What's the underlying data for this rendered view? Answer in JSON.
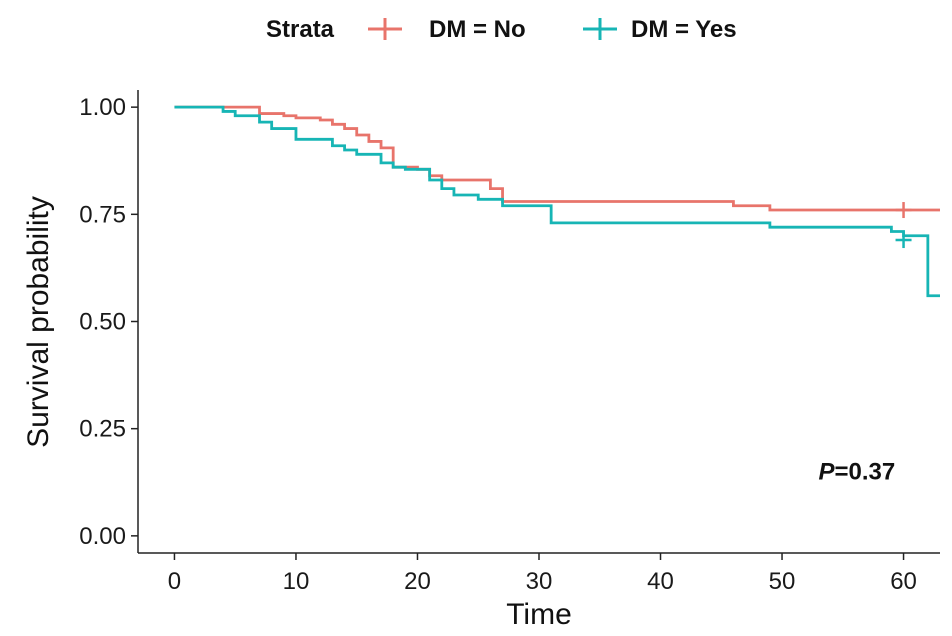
{
  "chart_data": {
    "type": "line",
    "subtype": "kaplan-meier step curve",
    "title": "",
    "xlabel": "Time",
    "ylabel": "Survival probability",
    "xlim": [
      -3,
      63
    ],
    "ylim": [
      -0.04,
      1.04
    ],
    "x_ticks": [
      0,
      10,
      20,
      30,
      40,
      50,
      60
    ],
    "x_tick_labels": [
      "0",
      "10",
      "20",
      "30",
      "40",
      "50",
      "60"
    ],
    "y_ticks": [
      0,
      0.25,
      0.5,
      0.75,
      1
    ],
    "y_tick_labels": [
      "0.00",
      "0.25",
      "0.50",
      "0.75",
      "1.00"
    ],
    "grid": false,
    "legend": {
      "title": "Strata",
      "position": "top",
      "labels": [
        "DM = No",
        "DM = Yes"
      ]
    },
    "annotation": {
      "p_label": "P",
      "p_value_text": "=0.37",
      "x": 53,
      "y": 0.15
    },
    "series": [
      {
        "name": "DM = No",
        "color": "#e8746b",
        "x": [
          0,
          4,
          7,
          9,
          10,
          12,
          13,
          14,
          15,
          16,
          17,
          18,
          20,
          21,
          22,
          26,
          27,
          30,
          46,
          49,
          63
        ],
        "y": [
          1.0,
          1.0,
          0.985,
          0.98,
          0.975,
          0.97,
          0.96,
          0.95,
          0.935,
          0.92,
          0.905,
          0.86,
          0.855,
          0.84,
          0.83,
          0.81,
          0.78,
          0.78,
          0.77,
          0.76,
          0.76
        ],
        "censor_x": [
          60
        ],
        "censor_y": [
          0.76
        ]
      },
      {
        "name": "DM = Yes",
        "color": "#17b5b5",
        "x": [
          0,
          4,
          5,
          7,
          8,
          10,
          13,
          14,
          15,
          17,
          18,
          19,
          21,
          22,
          23,
          25,
          27,
          31,
          49,
          59,
          60,
          62,
          63
        ],
        "y": [
          1.0,
          0.99,
          0.98,
          0.965,
          0.95,
          0.925,
          0.91,
          0.9,
          0.89,
          0.87,
          0.86,
          0.855,
          0.83,
          0.81,
          0.795,
          0.785,
          0.77,
          0.73,
          0.72,
          0.71,
          0.7,
          0.56,
          0.56
        ],
        "censor_x": [
          60
        ],
        "censor_y": [
          0.69
        ]
      }
    ]
  }
}
